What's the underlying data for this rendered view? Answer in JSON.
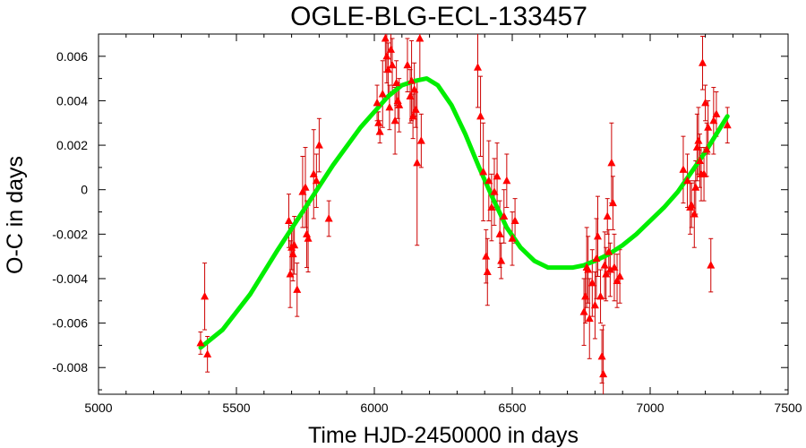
{
  "chart_data": {
    "type": "scatter",
    "title": "OGLE-BLG-ECL-133457",
    "xlabel": "Time HJD-2450000 in days",
    "ylabel": "O-C in days",
    "xlim": [
      5000,
      7500
    ],
    "ylim": [
      -0.0092,
      0.007
    ],
    "xticks": [
      5000,
      5500,
      6000,
      6500,
      7000,
      7500
    ],
    "yticks": [
      0.006,
      0.004,
      0.002,
      0,
      -0.002,
      -0.004,
      -0.006,
      -0.008
    ],
    "ytick_labels": [
      "0.006",
      "0.004",
      "0.002",
      "0",
      "-0.002",
      "-0.004",
      "-0.006",
      "-0.008"
    ],
    "grid": false,
    "colors": {
      "points": "#ff0000",
      "errorbars": "#cc0000",
      "fit": "#00ee00"
    },
    "series": [
      {
        "kind": "points_with_errorbars",
        "x": [
          5370,
          5385,
          5395,
          5690,
          5695,
          5700,
          5705,
          5710,
          5720,
          5740,
          5750,
          5755,
          5760,
          5780,
          5790,
          5800,
          5835,
          6010,
          6015,
          6020,
          6030,
          6040,
          6045,
          6050,
          6055,
          6060,
          6065,
          6075,
          6080,
          6085,
          6090,
          6120,
          6130,
          6135,
          6140,
          6145,
          6150,
          6155,
          6165,
          6170,
          6375,
          6385,
          6395,
          6405,
          6410,
          6415,
          6425,
          6435,
          6445,
          6455,
          6460,
          6470,
          6480,
          6500,
          6510,
          6760,
          6765,
          6770,
          6775,
          6780,
          6790,
          6800,
          6805,
          6810,
          6820,
          6825,
          6830,
          6835,
          6840,
          6845,
          6850,
          6855,
          6860,
          6865,
          6870,
          6880,
          6890,
          7120,
          7135,
          7145,
          7150,
          7160,
          7165,
          7170,
          7175,
          7180,
          7185,
          7190,
          7195,
          7200,
          7205,
          7210,
          7220,
          7230,
          7240,
          7280
        ],
        "y": [
          -0.0069,
          -0.0048,
          -0.0074,
          -0.0014,
          -0.0038,
          -0.0026,
          -0.0029,
          -0.0025,
          -0.0045,
          -0.0001,
          0.0001,
          -0.002,
          -0.0022,
          0.0007,
          0.0004,
          0.002,
          -0.0013,
          0.0039,
          0.003,
          0.0026,
          0.0043,
          0.0068,
          0.006,
          0.0054,
          0.0037,
          0.0063,
          0.0056,
          0.0031,
          0.0048,
          0.004,
          0.0038,
          0.0056,
          0.0042,
          0.0049,
          0.0033,
          0.0045,
          0.0036,
          0.0012,
          0.0068,
          0.0022,
          0.0055,
          0.0033,
          0.0008,
          -0.003,
          -0.0037,
          0.0004,
          -0.0008,
          -0.0001,
          0.0006,
          -0.002,
          -0.0032,
          -0.0012,
          0.0004,
          -0.0022,
          -0.0014,
          -0.0055,
          -0.0048,
          -0.0035,
          -0.0036,
          -0.0058,
          -0.0042,
          -0.0052,
          -0.0031,
          -0.0021,
          -0.0048,
          -0.0075,
          -0.0083,
          -0.0034,
          -0.0038,
          -0.0012,
          -0.0028,
          -0.0036,
          0.0012,
          -0.0006,
          -0.0035,
          -0.0041,
          -0.0039,
          0.0009,
          0.0004,
          -0.0008,
          -0.0007,
          -0.0011,
          0.0001,
          0.0019,
          0.0022,
          0.0013,
          0.0007,
          0.0057,
          0.0007,
          0.0039,
          0.0018,
          0.0028,
          -0.0034,
          0.0031,
          0.0034,
          0.0029
        ],
        "yerr": [
          0.0005,
          0.0015,
          0.0008,
          0.0012,
          0.0015,
          0.001,
          0.0012,
          0.0013,
          0.0012,
          0.0016,
          0.0018,
          0.0015,
          0.0015,
          0.002,
          0.0012,
          0.0012,
          0.0008,
          0.0008,
          0.0005,
          0.0005,
          0.0015,
          0.0015,
          0.0012,
          0.0012,
          0.001,
          0.0008,
          0.0012,
          0.0015,
          0.001,
          0.0008,
          0.0012,
          0.0012,
          0.0012,
          0.0018,
          0.001,
          0.0012,
          0.0008,
          0.0037,
          0.0018,
          0.0012,
          0.0018,
          0.0018,
          0.0022,
          0.0012,
          0.0015,
          0.0018,
          0.0015,
          0.0015,
          0.0015,
          0.0015,
          0.0008,
          0.0012,
          0.0012,
          0.0012,
          0.001,
          0.0015,
          0.0012,
          0.0018,
          0.0015,
          0.0018,
          0.0015,
          0.0015,
          0.0018,
          0.0018,
          0.0012,
          0.0012,
          0.0022,
          0.0015,
          0.0012,
          0.0008,
          0.001,
          0.0012,
          0.0018,
          0.0012,
          0.0015,
          0.0012,
          0.0012,
          0.0015,
          0.0012,
          0.0012,
          0.001,
          0.0015,
          0.0012,
          0.0015,
          0.0015,
          0.0012,
          0.0012,
          0.0012,
          0.0012,
          0.0008,
          0.0012,
          0.0012,
          0.0012,
          0.0015,
          0.001,
          0.0008
        ]
      },
      {
        "kind": "fit_curve",
        "x": [
          5370,
          5450,
          5550,
          5650,
          5750,
          5850,
          5950,
          6050,
          6100,
          6150,
          6190,
          6230,
          6280,
          6330,
          6380,
          6430,
          6480,
          6530,
          6580,
          6630,
          6690,
          6720,
          6760,
          6800,
          6850,
          6900,
          6950,
          7000,
          7050,
          7100,
          7150,
          7200,
          7280
        ],
        "y": [
          -0.0071,
          -0.0063,
          -0.0047,
          -0.0027,
          -0.0008,
          0.0011,
          0.0028,
          0.0042,
          0.0047,
          0.0049,
          0.005,
          0.0047,
          0.0038,
          0.0025,
          0.001,
          -0.0004,
          -0.0017,
          -0.0026,
          -0.0032,
          -0.0035,
          -0.0035,
          -0.0035,
          -0.0034,
          -0.0032,
          -0.0029,
          -0.0025,
          -0.002,
          -0.0014,
          -0.0008,
          -0.0001,
          0.0008,
          0.0017,
          0.0033
        ]
      }
    ]
  }
}
